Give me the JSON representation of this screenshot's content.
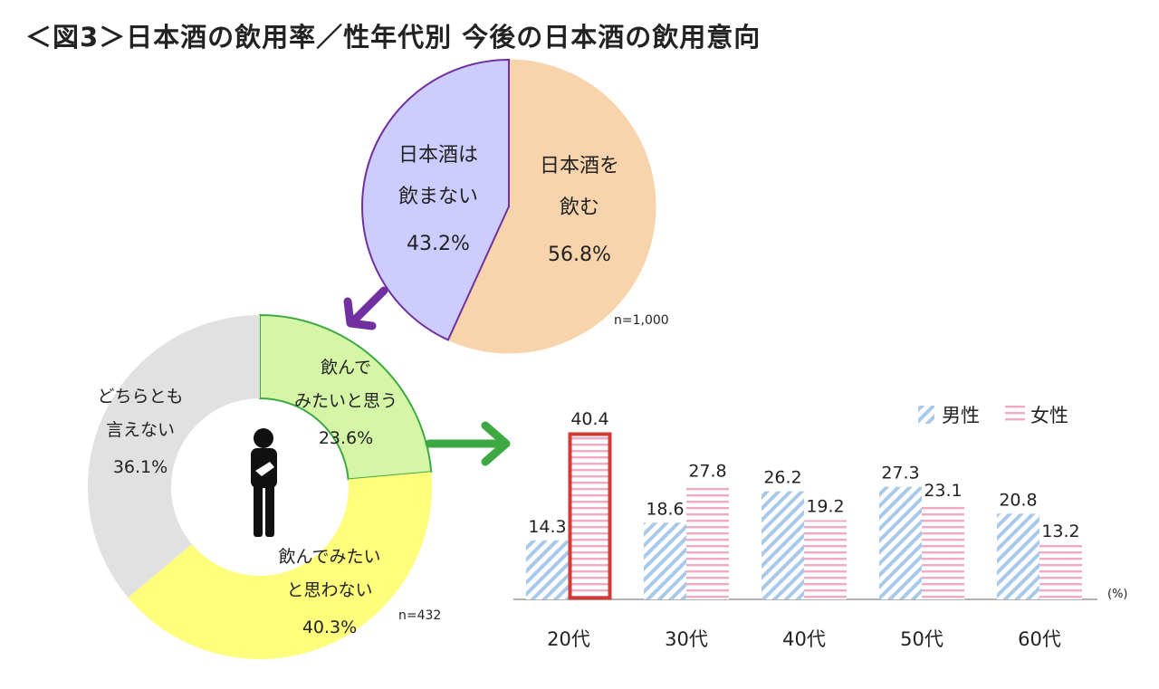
{
  "title": "＜図3＞日本酒の飲用率／性年代別 今後の日本酒の飲用意向",
  "chart_data": [
    {
      "type": "pie",
      "slices": [
        {
          "label_lines": [
            "日本酒を",
            "飲む"
          ],
          "value": 56.8,
          "value_label": "56.8%",
          "color": "#f8d4ad"
        },
        {
          "label_lines": [
            "日本酒は",
            "飲まない"
          ],
          "value": 43.2,
          "value_label": "43.2%",
          "color": "#ccccfe"
        }
      ],
      "note": "n=1,000"
    },
    {
      "type": "pie",
      "variant": "donut",
      "slices": [
        {
          "label_lines": [
            "飲んで",
            "みたいと思う"
          ],
          "value": 23.6,
          "value_label": "23.6%",
          "color": "#d5f6a7"
        },
        {
          "label_lines": [
            "飲んでみたい",
            "と思わない"
          ],
          "value": 40.3,
          "value_label": "40.3%",
          "color": "#fefe7c"
        },
        {
          "label_lines": [
            "どちらとも",
            "言えない"
          ],
          "value": 36.1,
          "value_label": "36.1%",
          "color": "#e1e1e1"
        }
      ],
      "note": "n=432"
    },
    {
      "type": "bar",
      "categories": [
        "20代",
        "30代",
        "40代",
        "50代",
        "60代"
      ],
      "series": [
        {
          "name": "男性",
          "values": [
            14.3,
            18.6,
            26.2,
            27.3,
            20.8
          ],
          "color": "#a9c9ea",
          "pattern": "diagonal"
        },
        {
          "name": "女性",
          "values": [
            40.4,
            27.8,
            19.2,
            23.1,
            13.2
          ],
          "color": "#f1a9c6",
          "pattern": "horizontal"
        }
      ],
      "value_labels": {
        "male": [
          "14.3",
          "18.6",
          "26.2",
          "27.3",
          "20.8"
        ],
        "female": [
          "40.4",
          "27.8",
          "19.2",
          "23.1",
          "13.2"
        ]
      },
      "highlight": {
        "series": "女性",
        "category": "20代",
        "color": "#d23b35"
      },
      "unit_label": "(%)",
      "legend_position": "top-right",
      "ylim": [
        0,
        40.4
      ]
    }
  ]
}
